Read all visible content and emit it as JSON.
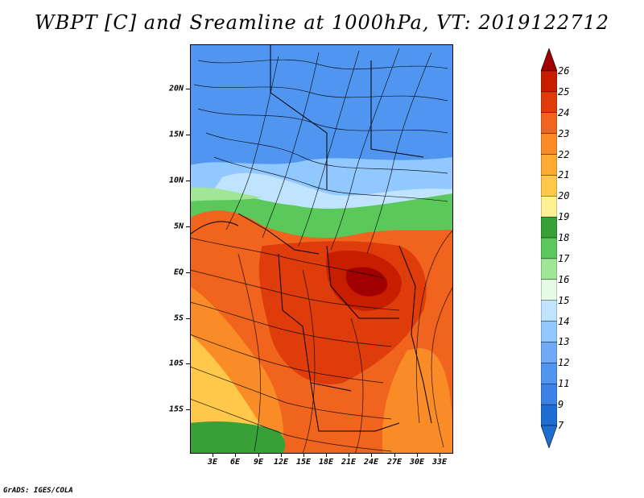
{
  "title": "WBPT [C] and Sreamline at 1000hPa, VT: 2019122712",
  "credit": "GrADS: IGES/COLA",
  "map": {
    "lat_ticks": [
      "20N",
      "15N",
      "10N",
      "5N",
      "EQ",
      "5S",
      "10S",
      "15S"
    ],
    "lon_ticks": [
      "3E",
      "6E",
      "9E",
      "12E",
      "15E",
      "18E",
      "21E",
      "24E",
      "27E",
      "30E",
      "33E"
    ]
  },
  "colorbar": {
    "labels": [
      "26",
      "25",
      "24",
      "23",
      "22",
      "21",
      "20",
      "19",
      "18",
      "17",
      "16",
      "15",
      "14",
      "13",
      "12",
      "11",
      "9",
      "7"
    ],
    "colors": [
      "#a00000",
      "#c81e00",
      "#de3c0a",
      "#f0641e",
      "#fa8c28",
      "#ffaa32",
      "#ffc84b",
      "#fff096",
      "#37a037",
      "#5ac85a",
      "#a0e696",
      "#e6fae6",
      "#c0e4ff",
      "#91c8ff",
      "#6eaaf5",
      "#5096f0",
      "#3c82e6",
      "#1e6ed2"
    ]
  }
}
